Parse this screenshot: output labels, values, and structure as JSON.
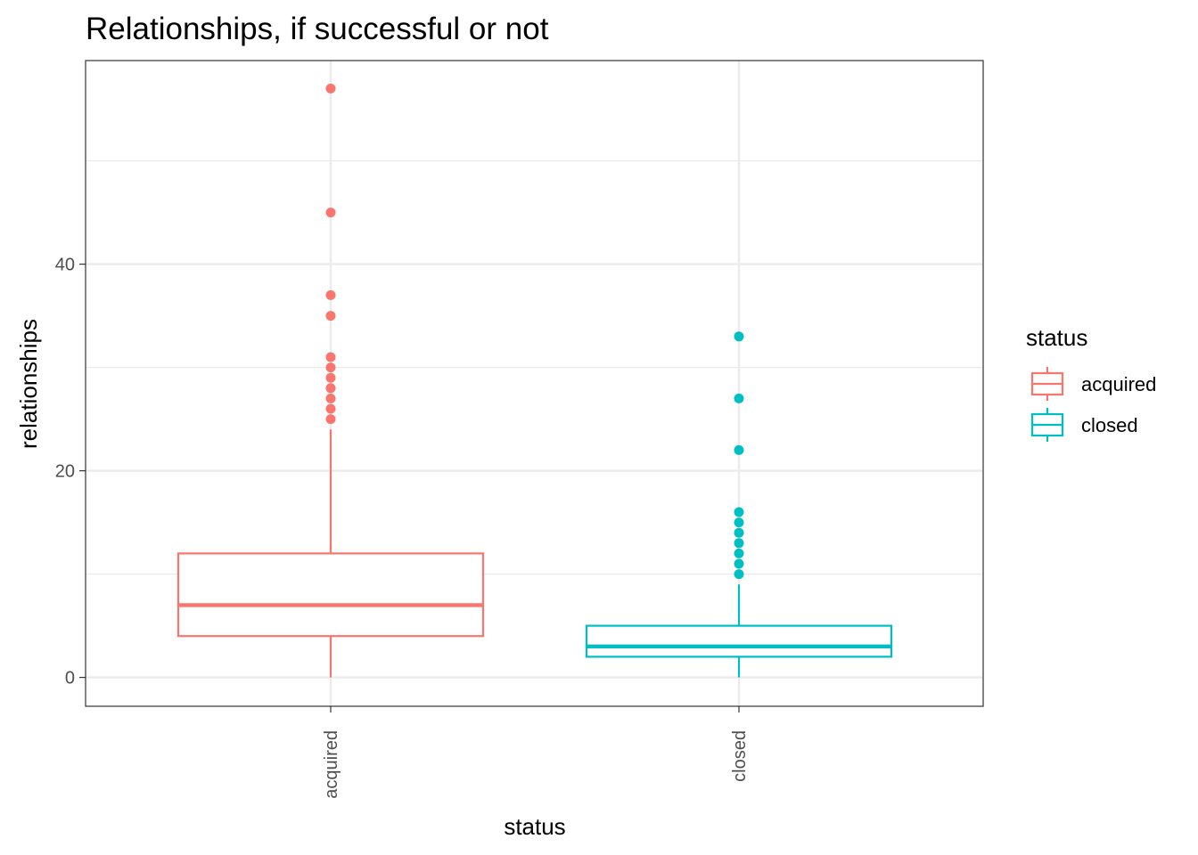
{
  "chart_data": {
    "type": "boxplot",
    "title": "Relationships, if successful or not",
    "xlabel": "status",
    "ylabel": "relationships",
    "categories": [
      "acquired",
      "closed"
    ],
    "ylim": [
      -2.8,
      59.8
    ],
    "y_ticks": [
      0,
      20,
      40
    ],
    "y_minor_ticks": [
      10,
      30,
      50
    ],
    "grid": true,
    "legend": {
      "title": "status",
      "position": "right"
    },
    "colors": {
      "acquired": "#F8766D",
      "closed": "#00BFC4"
    },
    "series": [
      {
        "name": "acquired",
        "min": 0,
        "q1": 4,
        "median": 7,
        "q3": 12,
        "max": 24,
        "outliers": [
          57,
          45,
          37,
          35,
          31,
          30,
          29,
          28,
          27,
          26,
          25
        ]
      },
      {
        "name": "closed",
        "min": 0,
        "q1": 2,
        "median": 3,
        "q3": 5,
        "max": 9,
        "outliers": [
          33,
          27,
          22,
          16,
          15,
          14,
          13,
          12,
          11,
          10
        ]
      }
    ]
  }
}
